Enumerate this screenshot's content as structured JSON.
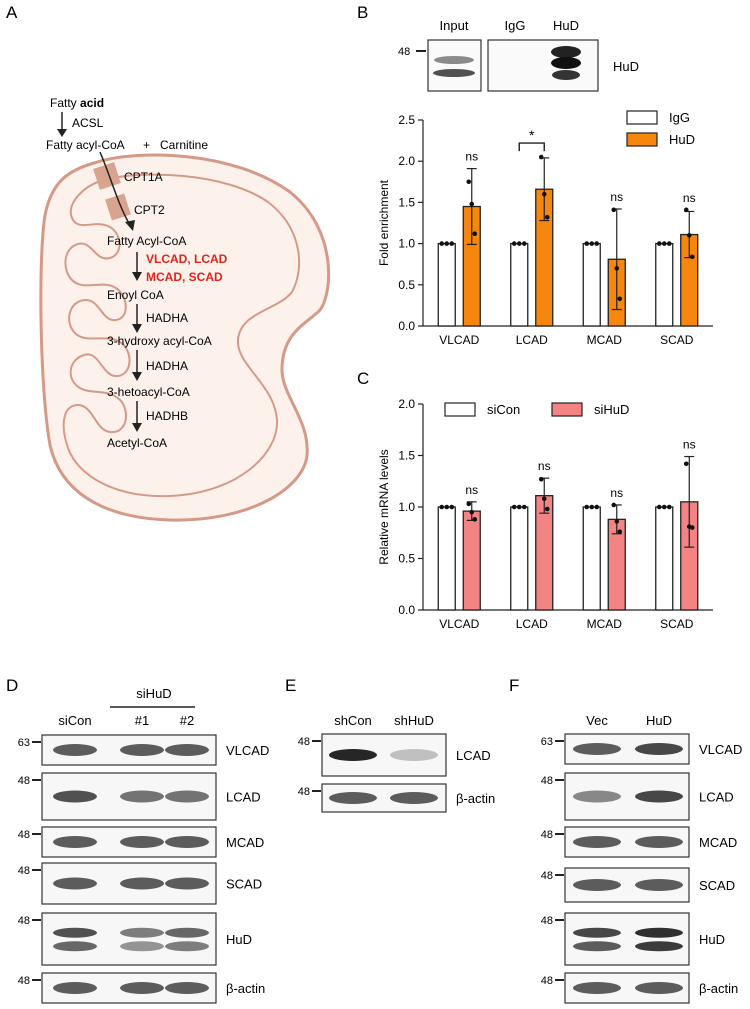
{
  "panels": {
    "A": {
      "letter": "A",
      "fatty_acid_pre": "Fatty ",
      "fatty_acid_bold": "acid",
      "acsl": "ACSL",
      "acyl_coa": "Fatty acyl-CoA",
      "plus": "+",
      "carnitine": "Carnitine",
      "cpt1a": "CPT1A",
      "cpt2": "CPT2",
      "fatty_acyl_coa": "Fatty Acyl-CoA",
      "enzymes_red_1": "VLCAD, LCAD",
      "enzymes_red_2": "MCAD, SCAD",
      "enoyl_coa": "Enoyl CoA",
      "hadha_1": "HADHA",
      "hydroxy": "3-hydroxy acyl-CoA",
      "hadha_2": "HADHA",
      "ketoacyl": "3-hetoacyl-CoA",
      "hadhb": "HADHB",
      "acetyl": "Acetyl-CoA",
      "mito_color": "#d49a87",
      "mito_fill": "#fdf1ec",
      "cpt_color": "#d9a48f",
      "red": "#e2231a"
    },
    "B": {
      "letter": "B",
      "lanes": [
        "Input",
        "IgG",
        "HuD"
      ],
      "marker": "48",
      "blot_label": "HuD"
    },
    "C": {
      "letter": "C"
    },
    "D": {
      "letter": "D",
      "group_label": "siHuD",
      "lanes": [
        "siCon",
        "#1",
        "#2"
      ],
      "blots": [
        {
          "label": "VLCAD",
          "marker": "63"
        },
        {
          "label": "LCAD",
          "marker": "48"
        },
        {
          "label": "MCAD",
          "marker": "48"
        },
        {
          "label": "SCAD",
          "marker": "48"
        },
        {
          "label": "HuD",
          "marker": "48"
        },
        {
          "label": "β-actin",
          "marker": "48"
        }
      ]
    },
    "E": {
      "letter": "E",
      "lanes": [
        "shCon",
        "shHuD"
      ],
      "blots": [
        {
          "label": "LCAD",
          "marker": "48"
        },
        {
          "label": "β-actin",
          "marker": "48"
        }
      ]
    },
    "F": {
      "letter": "F",
      "lanes": [
        "Vec",
        "HuD"
      ],
      "blots": [
        {
          "label": "VLCAD",
          "marker": "63"
        },
        {
          "label": "LCAD",
          "marker": "48"
        },
        {
          "label": "MCAD",
          "marker": "48"
        },
        {
          "label": "SCAD",
          "marker": "48"
        },
        {
          "label": "HuD",
          "marker": "48"
        },
        {
          "label": "β-actin",
          "marker": "48"
        }
      ]
    }
  },
  "chart_data": [
    {
      "type": "bar",
      "panel": "B",
      "categories": [
        "VLCAD",
        "LCAD",
        "MCAD",
        "SCAD"
      ],
      "series": [
        {
          "name": "IgG",
          "values": [
            1.0,
            1.0,
            1.0,
            1.0
          ],
          "error": [
            0,
            0,
            0,
            0
          ],
          "points": [
            [
              1,
              1,
              1
            ],
            [
              1,
              1,
              1
            ],
            [
              1,
              1,
              1
            ],
            [
              1,
              1,
              1
            ]
          ],
          "color": "#ffffff"
        },
        {
          "name": "HuD",
          "values": [
            1.45,
            1.66,
            0.81,
            1.11
          ],
          "error": [
            0.46,
            0.38,
            0.61,
            0.28
          ],
          "points": [
            [
              1.75,
              1.48,
              1.12
            ],
            [
              2.05,
              1.6,
              1.32
            ],
            [
              1.41,
              0.7,
              0.33
            ],
            [
              1.41,
              1.1,
              0.84
            ]
          ],
          "color": "#f7860e"
        }
      ],
      "annotations": [
        "ns",
        "*",
        "ns",
        "ns"
      ],
      "ylabel": "Fold enrichment",
      "ylim": [
        0,
        2.5
      ],
      "yticks": [
        "0.0",
        "0.5",
        "1.0",
        "1.5",
        "2.0",
        "2.5"
      ],
      "legend": "top-right"
    },
    {
      "type": "bar",
      "panel": "C",
      "categories": [
        "VLCAD",
        "LCAD",
        "MCAD",
        "SCAD"
      ],
      "series": [
        {
          "name": "siCon",
          "values": [
            1.0,
            1.0,
            1.0,
            1.0
          ],
          "error": [
            0,
            0,
            0,
            0
          ],
          "points": [
            [
              1,
              1,
              1
            ],
            [
              1,
              1,
              1
            ],
            [
              1,
              1,
              1
            ],
            [
              1,
              1,
              1
            ]
          ],
          "color": "#ffffff"
        },
        {
          "name": "siHuD",
          "values": [
            0.96,
            1.11,
            0.88,
            1.05
          ],
          "error": [
            0.09,
            0.17,
            0.14,
            0.44
          ],
          "points": [
            [
              1.03,
              0.95,
              0.88
            ],
            [
              1.27,
              1.08,
              0.98
            ],
            [
              1.02,
              0.86,
              0.76
            ],
            [
              1.42,
              0.81,
              0.8
            ]
          ],
          "color": "#f48483"
        }
      ],
      "annotations": [
        "ns",
        "ns",
        "ns",
        "ns"
      ],
      "ylabel": "Relative mRNA levels",
      "ylim": [
        0,
        2.0
      ],
      "yticks": [
        "0.0",
        "0.5",
        "1.0",
        "1.5",
        "2.0"
      ],
      "legend": "top"
    }
  ]
}
